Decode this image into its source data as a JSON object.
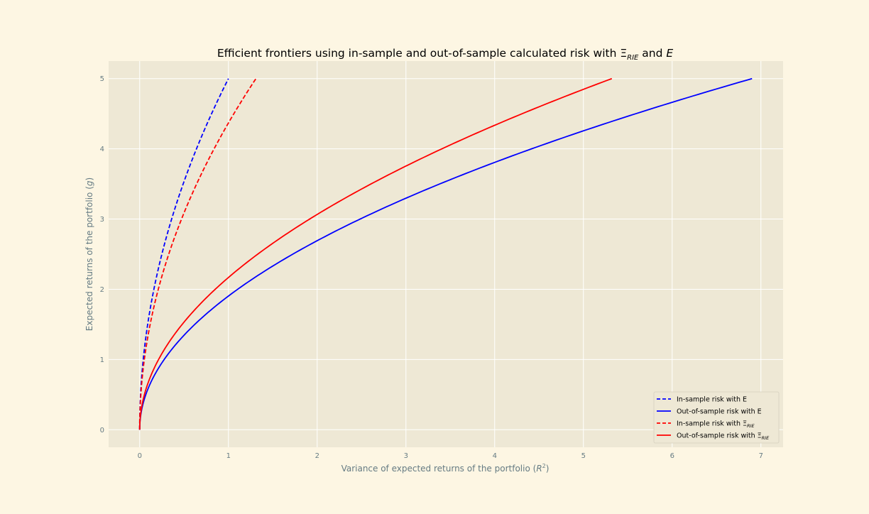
{
  "chart_data": {
    "type": "line",
    "title_prefix": "Efficient frontiers using in-sample and out-of-sample calculated risk with ",
    "title_xi": "Ξ",
    "title_xi_sub": "RIE",
    "title_mid": " and ",
    "title_e": "E",
    "xlabel_prefix": "Variance of expected returns of the portfolio (",
    "xlabel_var": "R",
    "xlabel_sup": "2",
    "xlabel_suffix": ")",
    "ylabel_prefix": "Expected returns of the portfolio (",
    "ylabel_var": "g",
    "ylabel_suffix": ")",
    "xlim": [
      -0.35,
      7.25
    ],
    "ylim": [
      -0.25,
      5.25
    ],
    "xticks": [
      0,
      1,
      2,
      3,
      4,
      5,
      6,
      7
    ],
    "yticks": [
      0,
      1,
      2,
      3,
      4,
      5
    ],
    "grid": true,
    "legend_position": "bottom-right",
    "series": [
      {
        "name": "In-sample risk with  E",
        "label_main": "In-sample risk with  E",
        "label_sub": "",
        "color": "#0000ff",
        "dash": true,
        "x_max": 1.0,
        "y_max": 5.0
      },
      {
        "name": "Out-of-sample risk with E",
        "label_main": "Out-of-sample risk with E",
        "label_sub": "",
        "color": "#0000ff",
        "dash": false,
        "x_max": 6.9,
        "y_max": 5.0
      },
      {
        "name": "In-sample risk with ΞRIE",
        "label_main": "In-sample risk with Ξ",
        "label_sub": "RIE",
        "color": "#ff0000",
        "dash": true,
        "x_max": 1.31,
        "y_max": 5.0
      },
      {
        "name": "Out-of-sample risk with ΞRIE",
        "label_main": "Out-of-sample risk with Ξ",
        "label_sub": "RIE",
        "color": "#ff0000",
        "dash": false,
        "x_max": 5.32,
        "y_max": 5.0
      }
    ]
  },
  "colors": {
    "figure_bg": "#fdf6e3",
    "axes_bg": "#eee8d5",
    "grid": "#ffffff",
    "tick_text": "#657b83",
    "title_text": "#000000"
  }
}
